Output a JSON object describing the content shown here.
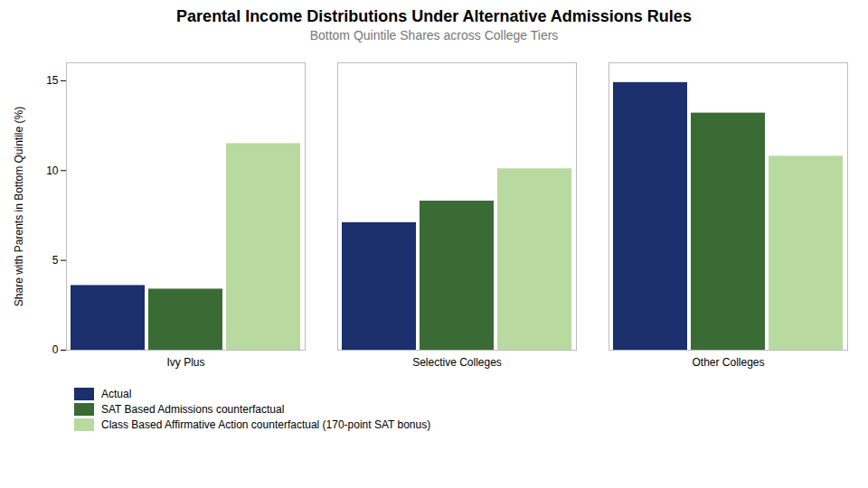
{
  "chart_data": {
    "type": "bar",
    "title": "Parental Income Distributions Under Alternative Admissions Rules",
    "subtitle": "Bottom Quintile Shares across College Tiers",
    "ylabel": "Share with Parents in Bottom Quintile (%)",
    "categories": [
      "Ivy Plus",
      "Selective Colleges",
      "Other Colleges"
    ],
    "series": [
      {
        "name": "Actual",
        "color": "#1a2f6b",
        "values": [
          3.6,
          7.1,
          14.9
        ]
      },
      {
        "name": "SAT Based Admissions counterfactual",
        "color": "#3a6b35",
        "values": [
          3.4,
          8.3,
          13.2
        ]
      },
      {
        "name": "Class Based Affirmative Action counterfactual (170-point SAT bonus)",
        "color": "#b8d9a0",
        "values": [
          11.5,
          10.1,
          10.8
        ]
      }
    ],
    "ylim": [
      0,
      16
    ],
    "yticks": [
      0,
      5,
      10,
      15
    ],
    "grid": false,
    "legend": "bottom"
  }
}
